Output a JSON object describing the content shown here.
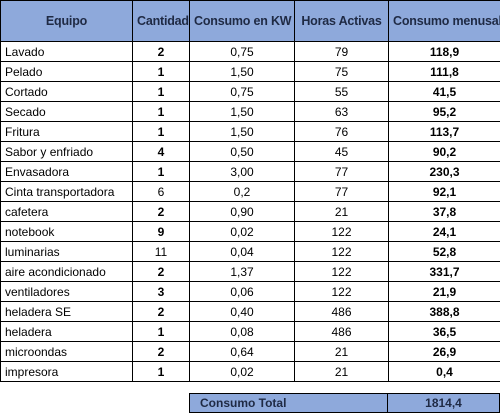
{
  "headers": {
    "equipo": "Equipo",
    "cantidad": "Cantidad",
    "consumo_kw": "Consumo en KW",
    "horas": "Horas Activas",
    "mensual": "Consumo menusal"
  },
  "rows": [
    {
      "equipo": "Lavado",
      "cantidad": "2",
      "consumo_kw": "0,75",
      "horas": "79",
      "mensual": "118,9"
    },
    {
      "equipo": "Pelado",
      "cantidad": "1",
      "consumo_kw": "1,50",
      "horas": "75",
      "mensual": "111,8"
    },
    {
      "equipo": "Cortado",
      "cantidad": "1",
      "consumo_kw": "0,75",
      "horas": "55",
      "mensual": "41,5"
    },
    {
      "equipo": "Secado",
      "cantidad": "1",
      "consumo_kw": "1,50",
      "horas": "63",
      "mensual": "95,2"
    },
    {
      "equipo": "Fritura",
      "cantidad": "1",
      "consumo_kw": "1,50",
      "horas": "76",
      "mensual": "113,7"
    },
    {
      "equipo": "Sabor y enfriado",
      "cantidad": "4",
      "consumo_kw": "0,50",
      "horas": "45",
      "mensual": "90,2"
    },
    {
      "equipo": "Envasadora",
      "cantidad": "1",
      "consumo_kw": "3,00",
      "horas": "77",
      "mensual": "230,3"
    },
    {
      "equipo": "Cinta transportadora",
      "cantidad": "6",
      "consumo_kw": "0,2",
      "horas": "77",
      "mensual": "92,1"
    },
    {
      "equipo": "cafetera",
      "cantidad": "2",
      "consumo_kw": "0,90",
      "horas": "21",
      "mensual": "37,8"
    },
    {
      "equipo": "notebook",
      "cantidad": "9",
      "consumo_kw": "0,02",
      "horas": "122",
      "mensual": "24,1"
    },
    {
      "equipo": "luminarias",
      "cantidad": "11",
      "consumo_kw": "0,04",
      "horas": "122",
      "mensual": "52,8"
    },
    {
      "equipo": "aire acondicionado",
      "cantidad": "2",
      "consumo_kw": "1,37",
      "horas": "122",
      "mensual": "331,7"
    },
    {
      "equipo": "ventiladores",
      "cantidad": "3",
      "consumo_kw": "0,06",
      "horas": "122",
      "mensual": "21,9"
    },
    {
      "equipo": "heladera SE",
      "cantidad": "2",
      "consumo_kw": "0,40",
      "horas": "486",
      "mensual": "388,8"
    },
    {
      "equipo": "heladera",
      "cantidad": "1",
      "consumo_kw": "0,08",
      "horas": "486",
      "mensual": "36,5"
    },
    {
      "equipo": "microondas",
      "cantidad": "2",
      "consumo_kw": "0,64",
      "horas": "21",
      "mensual": "26,9"
    },
    {
      "equipo": "impresora",
      "cantidad": "1",
      "consumo_kw": "0,02",
      "horas": "21",
      "mensual": "0,4"
    }
  ],
  "total": {
    "label": "Consumo Total",
    "value": "1814,4"
  },
  "colors": {
    "header_fill": "#8ea9db",
    "border": "#000000"
  }
}
